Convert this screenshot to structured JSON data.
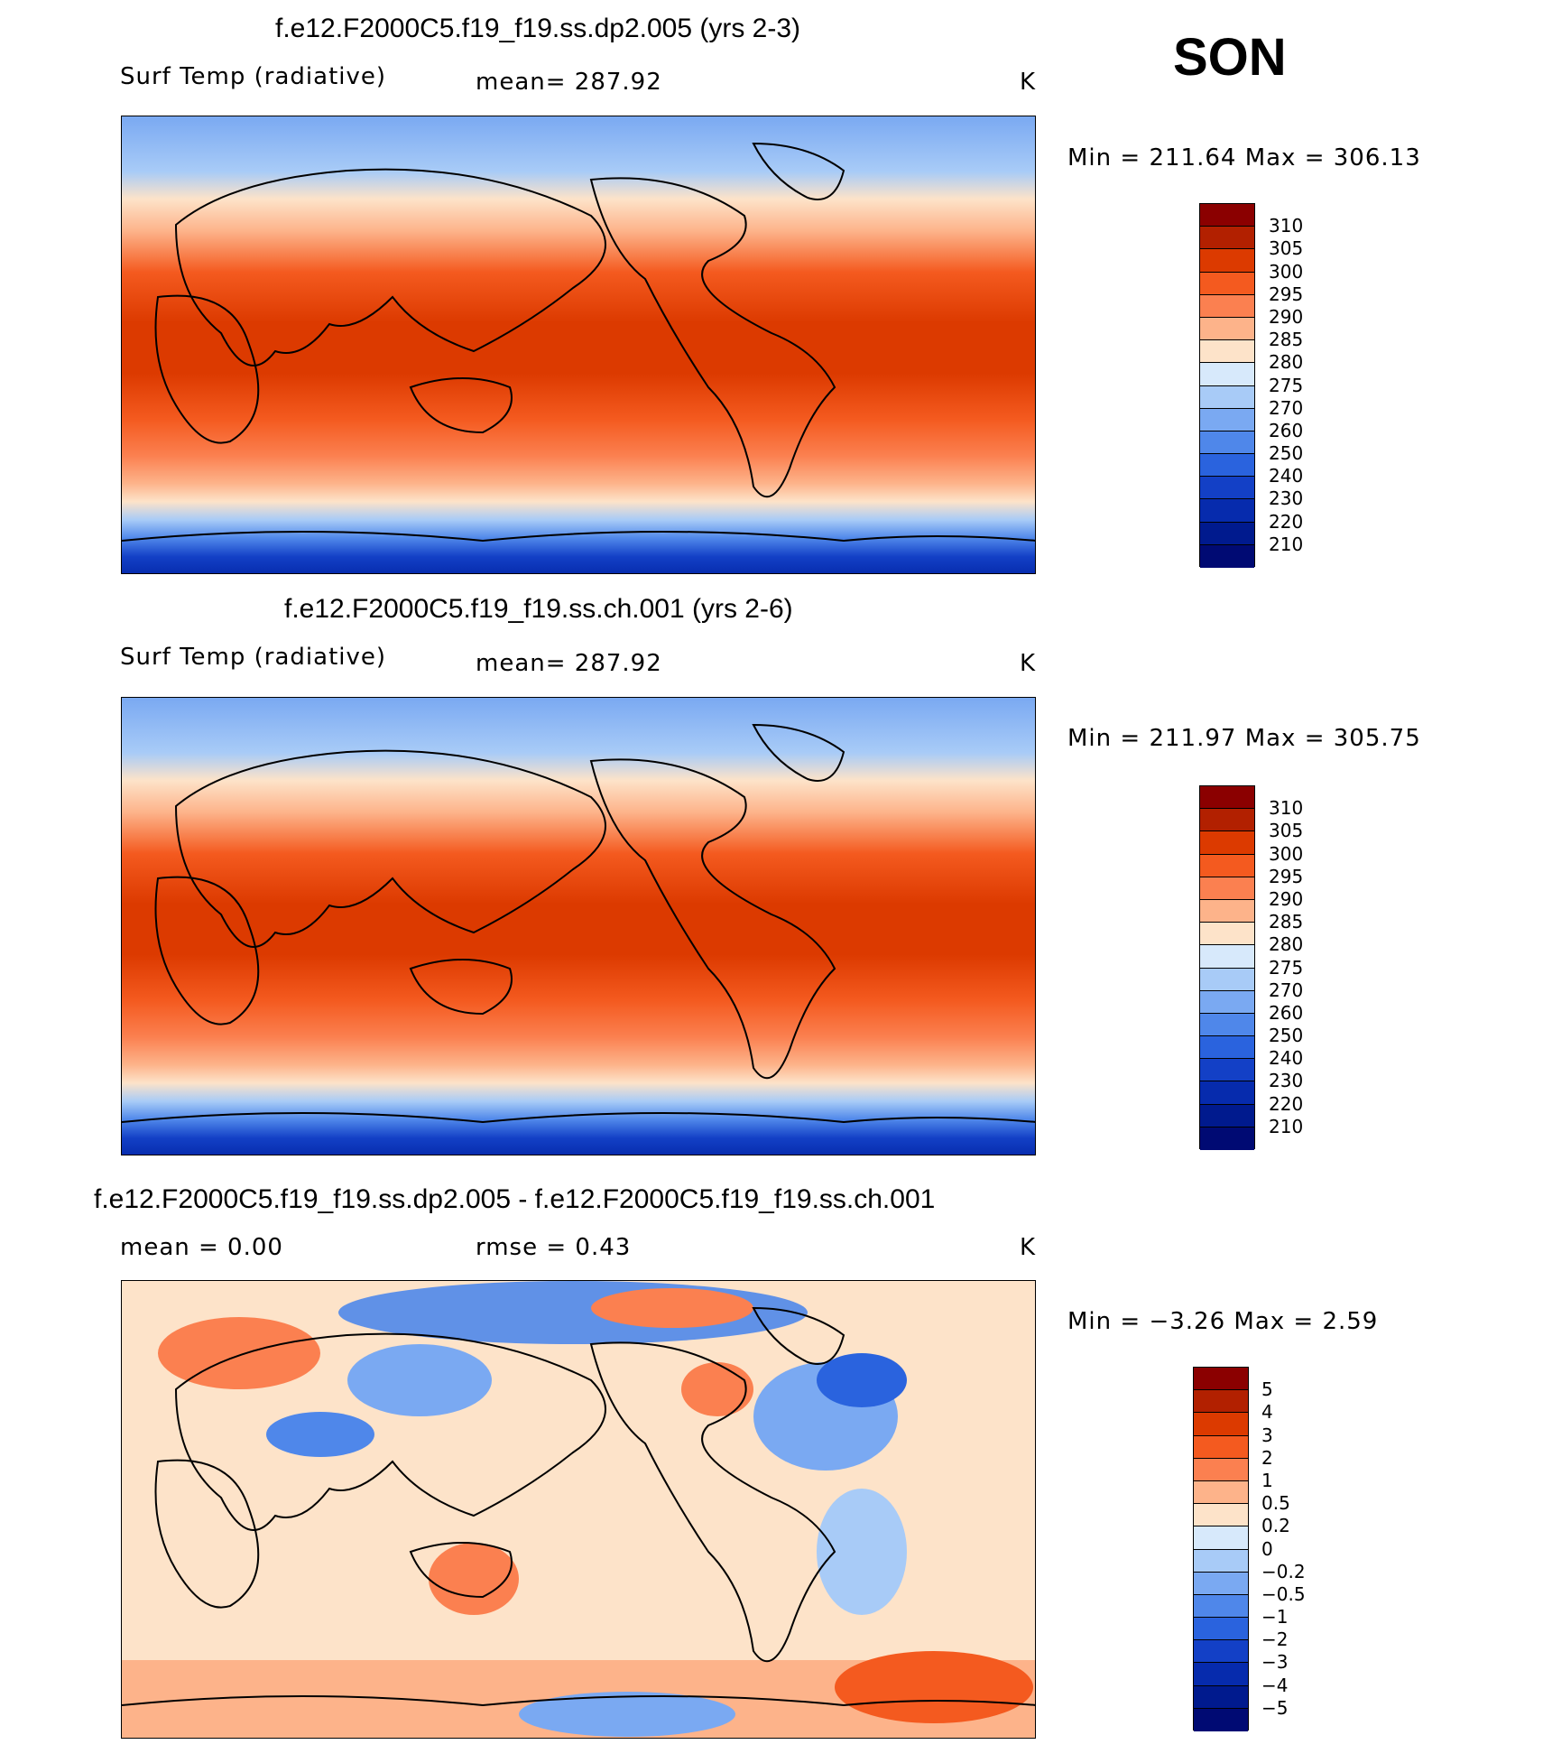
{
  "season": "SON",
  "panels": [
    {
      "id": "p1",
      "title": "f.e12.F2000C5.f19_f19.ss.dp2.005 (yrs 2-3)",
      "left_label": "Surf Temp (radiative)",
      "mean_label": "mean=  287.92",
      "units": "K",
      "minmax": "Min  =  211.64  Max  =  306.13",
      "colorbar": {
        "colors": [
          "#8b0000",
          "#b22000",
          "#dc3a00",
          "#f45a1f",
          "#fb8050",
          "#fdb38a",
          "#fde3c9",
          "#d7e9fb",
          "#a8cbf7",
          "#7aa9f2",
          "#4f87ea",
          "#2a63de",
          "#1340c6",
          "#062bad",
          "#001a8e",
          "#000a73"
        ],
        "labels": [
          "310",
          "305",
          "300",
          "295",
          "290",
          "285",
          "280",
          "275",
          "270",
          "260",
          "250",
          "240",
          "230",
          "220",
          "210"
        ]
      }
    },
    {
      "id": "p2",
      "title": "f.e12.F2000C5.f19_f19.ss.ch.001 (yrs 2-6)",
      "left_label": "Surf Temp (radiative)",
      "mean_label": "mean=  287.92",
      "units": "K",
      "minmax": "Min  =  211.97  Max  =  305.75",
      "colorbar": {
        "colors": [
          "#8b0000",
          "#b22000",
          "#dc3a00",
          "#f45a1f",
          "#fb8050",
          "#fdb38a",
          "#fde3c9",
          "#d7e9fb",
          "#a8cbf7",
          "#7aa9f2",
          "#4f87ea",
          "#2a63de",
          "#1340c6",
          "#062bad",
          "#001a8e",
          "#000a73"
        ],
        "labels": [
          "310",
          "305",
          "300",
          "295",
          "290",
          "285",
          "280",
          "275",
          "270",
          "260",
          "250",
          "240",
          "230",
          "220",
          "210"
        ]
      }
    },
    {
      "id": "p3",
      "title": "f.e12.F2000C5.f19_f19.ss.dp2.005 - f.e12.F2000C5.f19_f19.ss.ch.001",
      "left_label": "mean =     0.00",
      "mean_label": "rmse =     0.43",
      "units": "K",
      "minmax": "Min  =   −3.26  Max  =     2.59",
      "colorbar": {
        "colors": [
          "#8b0000",
          "#b22000",
          "#dc3a00",
          "#f45a1f",
          "#fb8050",
          "#fdb38a",
          "#fde3c9",
          "#d7e9fb",
          "#a8cbf7",
          "#7aa9f2",
          "#4f87ea",
          "#2a63de",
          "#1340c6",
          "#062bad",
          "#001a8e",
          "#000a73"
        ],
        "labels": [
          "5",
          "4",
          "3",
          "2",
          "1",
          "0.5",
          "0.2",
          "0",
          "−0.2",
          "−0.5",
          "−1",
          "−2",
          "−3",
          "−4",
          "−5"
        ]
      }
    }
  ]
}
